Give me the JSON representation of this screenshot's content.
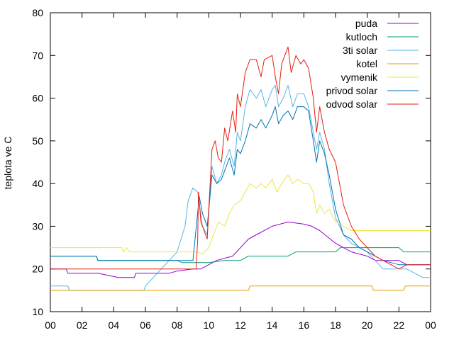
{
  "chart_data": {
    "type": "line",
    "xlabel": "",
    "ylabel": "teplota ve C",
    "xlim": [
      0,
      24
    ],
    "ylim": [
      10,
      80
    ],
    "xticks": [
      "00",
      "02",
      "04",
      "06",
      "08",
      "10",
      "12",
      "14",
      "16",
      "18",
      "20",
      "22",
      "00"
    ],
    "yticks": [
      "10",
      "20",
      "30",
      "40",
      "50",
      "60",
      "70",
      "80"
    ],
    "legend_position": "top-right",
    "grid": false,
    "series": [
      {
        "name": "puda",
        "color": "#9400d3",
        "points": [
          [
            0,
            20
          ],
          [
            1,
            20
          ],
          [
            1.1,
            19
          ],
          [
            3,
            19
          ],
          [
            4.3,
            18
          ],
          [
            5.3,
            18
          ],
          [
            5.4,
            19
          ],
          [
            7.5,
            19
          ],
          [
            8,
            19.5
          ],
          [
            9,
            20
          ],
          [
            9.5,
            20
          ],
          [
            10,
            21
          ],
          [
            10.5,
            22
          ],
          [
            11.5,
            23
          ],
          [
            12,
            25
          ],
          [
            12.5,
            27
          ],
          [
            13,
            28
          ],
          [
            14,
            30
          ],
          [
            15,
            31
          ],
          [
            16,
            30.5
          ],
          [
            16.5,
            30
          ],
          [
            17,
            29
          ],
          [
            18,
            26
          ],
          [
            18.5,
            25
          ],
          [
            19,
            24
          ],
          [
            20,
            23
          ],
          [
            20.5,
            22
          ],
          [
            21,
            22
          ],
          [
            22,
            22
          ],
          [
            22.5,
            21
          ],
          [
            23,
            21
          ],
          [
            24,
            21
          ]
        ]
      },
      {
        "name": "kutloch",
        "color": "#009e73",
        "points": [
          [
            0,
            23
          ],
          [
            2.9,
            23
          ],
          [
            3,
            22
          ],
          [
            8,
            22
          ],
          [
            8.3,
            21.5
          ],
          [
            10,
            21.5
          ],
          [
            11,
            22
          ],
          [
            12,
            22
          ],
          [
            12.5,
            23
          ],
          [
            15,
            23
          ],
          [
            15.5,
            24
          ],
          [
            18,
            24
          ],
          [
            18.3,
            25
          ],
          [
            22,
            25
          ],
          [
            22.3,
            24
          ],
          [
            24,
            24
          ]
        ]
      },
      {
        "name": "3ti solar",
        "color": "#56b4e9",
        "points": [
          [
            0,
            16
          ],
          [
            1.1,
            16
          ],
          [
            1.2,
            15
          ],
          [
            5.9,
            15
          ],
          [
            6,
            16
          ],
          [
            6.5,
            18
          ],
          [
            7,
            20
          ],
          [
            7.5,
            22
          ],
          [
            8,
            24
          ],
          [
            8.5,
            30
          ],
          [
            8.7,
            36
          ],
          [
            9,
            39
          ],
          [
            9.3,
            38
          ],
          [
            9.6,
            30
          ],
          [
            9.9,
            28
          ],
          [
            10.2,
            44
          ],
          [
            10.5,
            40
          ],
          [
            10.8,
            42
          ],
          [
            11,
            45
          ],
          [
            11.3,
            48
          ],
          [
            11.6,
            44
          ],
          [
            11.8,
            52
          ],
          [
            12,
            50
          ],
          [
            12.3,
            58
          ],
          [
            12.6,
            62
          ],
          [
            13,
            60
          ],
          [
            13.3,
            62
          ],
          [
            13.6,
            58
          ],
          [
            14,
            62
          ],
          [
            14.2,
            63
          ],
          [
            14.4,
            58
          ],
          [
            14.7,
            60
          ],
          [
            15,
            63
          ],
          [
            15.3,
            58
          ],
          [
            15.6,
            61
          ],
          [
            16,
            61
          ],
          [
            16.3,
            58
          ],
          [
            16.6,
            52
          ],
          [
            16.8,
            48
          ],
          [
            17,
            52
          ],
          [
            17.3,
            48
          ],
          [
            17.6,
            40
          ],
          [
            18,
            32
          ],
          [
            18.5,
            28
          ],
          [
            19,
            26
          ],
          [
            19.5,
            25
          ],
          [
            20,
            24
          ],
          [
            20.5,
            22
          ],
          [
            21,
            20
          ],
          [
            21.5,
            20
          ],
          [
            22,
            20
          ],
          [
            22.5,
            20
          ],
          [
            23,
            19
          ],
          [
            23.5,
            18
          ],
          [
            24,
            18
          ]
        ]
      },
      {
        "name": "kotel",
        "color": "#e69f00",
        "points": [
          [
            0,
            15
          ],
          [
            12.5,
            15
          ],
          [
            12.6,
            16
          ],
          [
            20.3,
            16
          ],
          [
            20.4,
            15
          ],
          [
            22.3,
            15
          ],
          [
            22.4,
            16
          ],
          [
            24,
            16
          ]
        ]
      },
      {
        "name": "vymenik",
        "color": "#f0e442",
        "points": [
          [
            0,
            25
          ],
          [
            4.5,
            25
          ],
          [
            4.6,
            24
          ],
          [
            4.8,
            25
          ],
          [
            5,
            24
          ],
          [
            9,
            24
          ],
          [
            9.3,
            24
          ],
          [
            9.6,
            23.5
          ],
          [
            10,
            25
          ],
          [
            10.3,
            28
          ],
          [
            10.6,
            31
          ],
          [
            11,
            30
          ],
          [
            11.3,
            33
          ],
          [
            11.6,
            35
          ],
          [
            12,
            36
          ],
          [
            12.3,
            38
          ],
          [
            12.6,
            40
          ],
          [
            13,
            39
          ],
          [
            13.3,
            40
          ],
          [
            13.6,
            39
          ],
          [
            14,
            41
          ],
          [
            14.3,
            38
          ],
          [
            14.6,
            40
          ],
          [
            15,
            42
          ],
          [
            15.3,
            40
          ],
          [
            15.6,
            41
          ],
          [
            16,
            40
          ],
          [
            16.3,
            40
          ],
          [
            16.6,
            38
          ],
          [
            16.8,
            33
          ],
          [
            17,
            35
          ],
          [
            17.3,
            33
          ],
          [
            17.6,
            34
          ],
          [
            18,
            31
          ],
          [
            18.5,
            30
          ],
          [
            19,
            29
          ],
          [
            19.5,
            29
          ],
          [
            20,
            29
          ],
          [
            24,
            29
          ]
        ]
      },
      {
        "name": "privod solar",
        "color": "#0072b2",
        "points": [
          [
            0,
            23
          ],
          [
            2.9,
            23
          ],
          [
            3,
            22
          ],
          [
            8,
            22
          ],
          [
            9,
            22
          ],
          [
            9.4,
            37
          ],
          [
            9.6,
            33
          ],
          [
            9.9,
            30
          ],
          [
            10.2,
            42
          ],
          [
            10.5,
            40
          ],
          [
            10.8,
            41
          ],
          [
            11,
            43
          ],
          [
            11.3,
            46
          ],
          [
            11.6,
            42
          ],
          [
            11.8,
            48
          ],
          [
            12,
            47
          ],
          [
            12.3,
            50
          ],
          [
            12.6,
            54
          ],
          [
            13,
            53
          ],
          [
            13.3,
            55
          ],
          [
            13.6,
            53
          ],
          [
            14,
            56
          ],
          [
            14.2,
            58
          ],
          [
            14.4,
            54
          ],
          [
            14.7,
            56
          ],
          [
            15,
            57
          ],
          [
            15.3,
            55
          ],
          [
            15.6,
            58
          ],
          [
            16,
            58
          ],
          [
            16.3,
            57
          ],
          [
            16.6,
            50
          ],
          [
            16.8,
            45
          ],
          [
            17,
            50
          ],
          [
            17.3,
            47
          ],
          [
            17.6,
            42
          ],
          [
            18,
            34
          ],
          [
            18.5,
            28
          ],
          [
            19,
            27
          ],
          [
            19.5,
            25
          ],
          [
            20,
            24
          ],
          [
            20.5,
            23
          ],
          [
            21,
            22
          ],
          [
            22,
            21
          ],
          [
            23,
            21
          ],
          [
            24,
            21
          ]
        ]
      },
      {
        "name": "odvod solar",
        "color": "#e51e10",
        "points": [
          [
            0,
            20
          ],
          [
            9.2,
            20
          ],
          [
            9.3,
            27
          ],
          [
            9.35,
            38
          ],
          [
            9.5,
            31
          ],
          [
            9.9,
            27
          ],
          [
            10.2,
            48
          ],
          [
            10.4,
            50
          ],
          [
            10.6,
            46
          ],
          [
            10.8,
            45
          ],
          [
            11,
            53
          ],
          [
            11.2,
            50
          ],
          [
            11.5,
            57
          ],
          [
            11.7,
            52
          ],
          [
            11.8,
            61
          ],
          [
            12,
            58
          ],
          [
            12.3,
            66
          ],
          [
            12.6,
            69
          ],
          [
            13,
            69
          ],
          [
            13.3,
            65
          ],
          [
            13.5,
            69
          ],
          [
            14,
            70
          ],
          [
            14.2,
            65
          ],
          [
            14.4,
            61
          ],
          [
            14.6,
            68
          ],
          [
            14.8,
            70
          ],
          [
            15,
            72
          ],
          [
            15.2,
            66
          ],
          [
            15.5,
            70
          ],
          [
            15.8,
            68
          ],
          [
            16,
            69
          ],
          [
            16.3,
            67
          ],
          [
            16.6,
            60
          ],
          [
            16.8,
            52
          ],
          [
            17,
            58
          ],
          [
            17.3,
            52
          ],
          [
            17.6,
            48
          ],
          [
            18,
            45
          ],
          [
            18.5,
            35
          ],
          [
            19,
            30
          ],
          [
            19.5,
            27
          ],
          [
            20,
            25
          ],
          [
            20.5,
            23
          ],
          [
            21,
            22
          ],
          [
            21.5,
            21
          ],
          [
            22,
            20
          ],
          [
            22.5,
            21
          ],
          [
            23,
            21
          ],
          [
            24,
            21
          ]
        ]
      }
    ]
  }
}
